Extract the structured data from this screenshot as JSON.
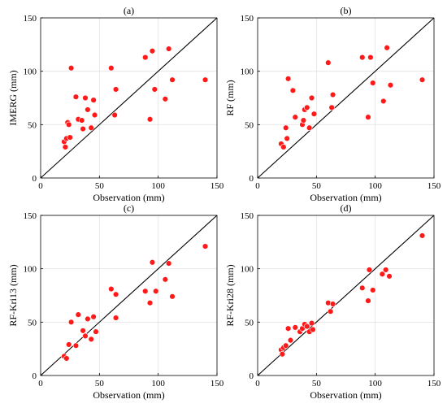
{
  "colors": {
    "marker": "#ff1a1a",
    "line": "#000000",
    "grid": "#e4e4e4"
  },
  "chart_data": [
    {
      "type": "scatter",
      "title": "(a)",
      "xlabel": "Observation (mm)",
      "ylabel": "IMERG (mm)",
      "xlim": [
        0,
        150
      ],
      "ylim": [
        0,
        150
      ],
      "xticks": [
        0,
        50,
        100,
        150
      ],
      "yticks": [
        0,
        50,
        100,
        150
      ],
      "grid": true,
      "reference_line": "1:1",
      "points": [
        [
          20,
          34
        ],
        [
          21,
          29
        ],
        [
          22,
          37
        ],
        [
          23,
          52
        ],
        [
          24,
          50
        ],
        [
          25,
          38
        ],
        [
          26,
          103
        ],
        [
          30,
          76
        ],
        [
          32,
          55
        ],
        [
          35,
          54
        ],
        [
          36,
          46
        ],
        [
          38,
          75
        ],
        [
          40,
          64
        ],
        [
          43,
          47
        ],
        [
          45,
          73
        ],
        [
          46,
          59
        ],
        [
          60,
          103
        ],
        [
          63,
          59
        ],
        [
          64,
          83
        ],
        [
          89,
          113
        ],
        [
          93,
          55
        ],
        [
          95,
          119
        ],
        [
          97,
          83
        ],
        [
          106,
          74
        ],
        [
          109,
          121
        ],
        [
          112,
          92
        ],
        [
          140,
          92
        ]
      ]
    },
    {
      "type": "scatter",
      "title": "(b)",
      "xlabel": "Observation (mm)",
      "ylabel": "RF (mm)",
      "xlim": [
        0,
        150
      ],
      "ylim": [
        0,
        150
      ],
      "xticks": [
        0,
        50,
        100,
        150
      ],
      "yticks": [
        0,
        50,
        100,
        150
      ],
      "grid": true,
      "reference_line": "1:1",
      "points": [
        [
          20,
          32
        ],
        [
          22,
          29
        ],
        [
          24,
          47
        ],
        [
          25,
          37
        ],
        [
          26,
          93
        ],
        [
          30,
          82
        ],
        [
          32,
          57
        ],
        [
          38,
          50
        ],
        [
          39,
          54
        ],
        [
          40,
          64
        ],
        [
          42,
          66
        ],
        [
          44,
          47
        ],
        [
          46,
          75
        ],
        [
          48,
          60
        ],
        [
          60,
          108
        ],
        [
          63,
          66
        ],
        [
          64,
          78
        ],
        [
          89,
          113
        ],
        [
          94,
          57
        ],
        [
          96,
          113
        ],
        [
          98,
          89
        ],
        [
          107,
          72
        ],
        [
          110,
          122
        ],
        [
          113,
          87
        ],
        [
          140,
          92
        ]
      ]
    },
    {
      "type": "scatter",
      "title": "(c)",
      "xlabel": "Observation (mm)",
      "ylabel": "RF-Kri13 (mm)",
      "xlim": [
        0,
        150
      ],
      "ylim": [
        0,
        150
      ],
      "xticks": [
        0,
        50,
        100,
        150
      ],
      "yticks": [
        0,
        50,
        100,
        150
      ],
      "grid": true,
      "reference_line": "1:1",
      "points": [
        [
          20,
          18
        ],
        [
          22,
          16
        ],
        [
          24,
          29
        ],
        [
          26,
          50
        ],
        [
          30,
          28
        ],
        [
          32,
          57
        ],
        [
          36,
          42
        ],
        [
          38,
          37
        ],
        [
          40,
          53
        ],
        [
          43,
          34
        ],
        [
          45,
          55
        ],
        [
          47,
          41
        ],
        [
          60,
          81
        ],
        [
          64,
          76
        ],
        [
          64,
          54
        ],
        [
          89,
          79
        ],
        [
          93,
          68
        ],
        [
          95,
          106
        ],
        [
          98,
          79
        ],
        [
          106,
          90
        ],
        [
          109,
          105
        ],
        [
          112,
          74
        ],
        [
          140,
          121
        ]
      ]
    },
    {
      "type": "scatter",
      "title": "(d)",
      "xlabel": "Observation (mm)",
      "ylabel": "RF-Kri28 (mm)",
      "xlim": [
        0,
        150
      ],
      "ylim": [
        0,
        150
      ],
      "xticks": [
        0,
        50,
        100,
        150
      ],
      "yticks": [
        0,
        50,
        100,
        150
      ],
      "grid": true,
      "reference_line": "1:1",
      "points": [
        [
          20,
          24
        ],
        [
          21,
          20
        ],
        [
          22,
          26
        ],
        [
          24,
          28
        ],
        [
          26,
          44
        ],
        [
          28,
          33
        ],
        [
          32,
          45
        ],
        [
          36,
          41
        ],
        [
          38,
          44
        ],
        [
          40,
          48
        ],
        [
          42,
          46
        ],
        [
          44,
          41
        ],
        [
          46,
          49
        ],
        [
          47,
          43
        ],
        [
          60,
          68
        ],
        [
          62,
          60
        ],
        [
          64,
          67
        ],
        [
          89,
          82
        ],
        [
          94,
          70
        ],
        [
          95,
          99
        ],
        [
          98,
          80
        ],
        [
          106,
          95
        ],
        [
          109,
          99
        ],
        [
          112,
          93
        ],
        [
          140,
          131
        ]
      ]
    }
  ]
}
